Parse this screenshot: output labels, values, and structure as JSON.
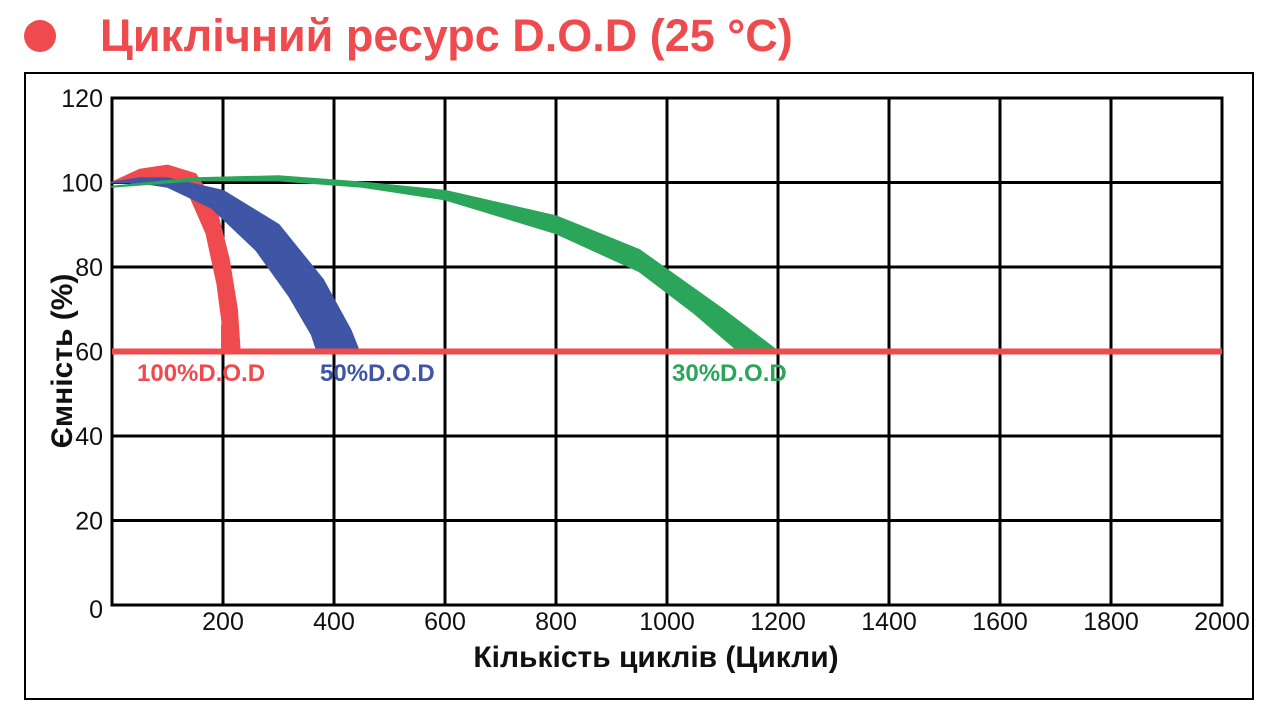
{
  "header": {
    "title": "Циклічний ресурс D.O.D (25 °C)",
    "bullet_color": "#ef4a4d"
  },
  "chart_data": {
    "type": "line",
    "title": "Циклічний ресурс D.O.D (25 °C)",
    "xlabel": "Кількість циклів (Цикли)",
    "ylabel": "Ємність (%)",
    "xlim": [
      0,
      2000
    ],
    "ylim": [
      0,
      120
    ],
    "x_ticks": [
      "200",
      "400",
      "600",
      "800",
      "1000",
      "1200",
      "1400",
      "1600",
      "1800",
      "2000"
    ],
    "y_ticks": [
      "0",
      "20",
      "40",
      "60",
      "80",
      "100",
      "120"
    ],
    "grid": true,
    "reference_line": {
      "y": 60,
      "color": "#ef4a4d"
    },
    "series": [
      {
        "name": "100%D.O.D",
        "color": "#ef4a4d",
        "upper": [
          [
            0,
            100
          ],
          [
            50,
            103
          ],
          [
            100,
            104
          ],
          [
            150,
            102
          ],
          [
            185,
            95
          ],
          [
            210,
            82
          ],
          [
            225,
            70
          ],
          [
            230,
            60
          ]
        ],
        "lower": [
          [
            0,
            100
          ],
          [
            50,
            101
          ],
          [
            100,
            101
          ],
          [
            140,
            97
          ],
          [
            170,
            88
          ],
          [
            190,
            76
          ],
          [
            200,
            66
          ],
          [
            200,
            60
          ]
        ]
      },
      {
        "name": "50%D.O.D",
        "color": "#3f55a5",
        "upper": [
          [
            0,
            100
          ],
          [
            50,
            101
          ],
          [
            100,
            101
          ],
          [
            200,
            98
          ],
          [
            300,
            90
          ],
          [
            380,
            77
          ],
          [
            430,
            65
          ],
          [
            445,
            60
          ]
        ],
        "lower": [
          [
            0,
            100
          ],
          [
            50,
            100
          ],
          [
            100,
            99
          ],
          [
            180,
            94
          ],
          [
            260,
            84
          ],
          [
            320,
            73
          ],
          [
            360,
            64
          ],
          [
            370,
            60
          ]
        ]
      },
      {
        "name": "30%D.O.D",
        "color": "#2ba55a",
        "upper": [
          [
            0,
            99
          ],
          [
            150,
            101
          ],
          [
            300,
            101.5
          ],
          [
            450,
            100
          ],
          [
            600,
            98
          ],
          [
            800,
            92
          ],
          [
            950,
            84
          ],
          [
            1100,
            70
          ],
          [
            1200,
            60
          ]
        ],
        "lower": [
          [
            0,
            99
          ],
          [
            150,
            100.5
          ],
          [
            300,
            100.5
          ],
          [
            450,
            99
          ],
          [
            600,
            96
          ],
          [
            800,
            88
          ],
          [
            950,
            79
          ],
          [
            1050,
            69
          ],
          [
            1130,
            60
          ]
        ]
      }
    ]
  }
}
